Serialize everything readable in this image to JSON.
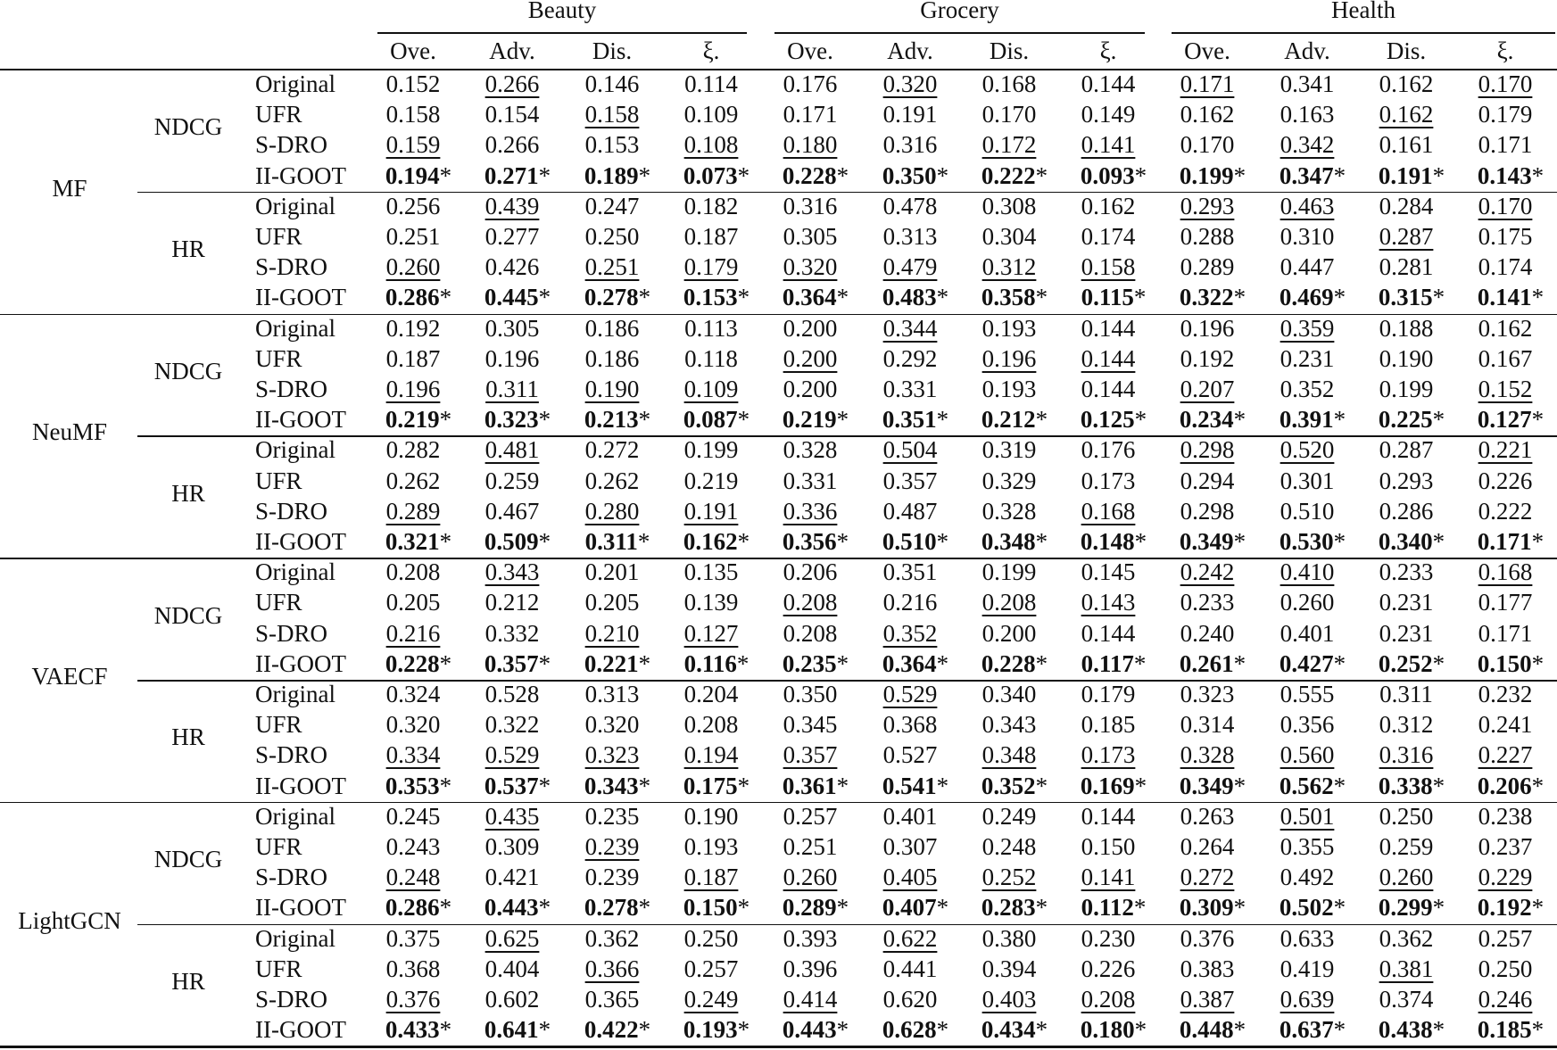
{
  "table": {
    "datasets": [
      "Beauty",
      "Grocery",
      "Health"
    ],
    "sub_columns": [
      "Ove.",
      "Adv.",
      "Dis.",
      "ξ."
    ],
    "significance_mark": "*",
    "bold_method": "II-GOOT",
    "models": [
      {
        "name": "MF",
        "metrics": [
          {
            "name": "NDCG",
            "rows": [
              {
                "method": "Original",
                "values": [
                  "0.152",
                  "0.266",
                  "0.146",
                  "0.114",
                  "0.176",
                  "0.320",
                  "0.168",
                  "0.144",
                  "0.171",
                  "0.341",
                  "0.162",
                  "0.170"
                ],
                "underlined": [
                  1,
                  5,
                  8,
                  11
                ]
              },
              {
                "method": "UFR",
                "values": [
                  "0.158",
                  "0.154",
                  "0.158",
                  "0.109",
                  "0.171",
                  "0.191",
                  "0.170",
                  "0.149",
                  "0.162",
                  "0.163",
                  "0.162",
                  "0.179"
                ],
                "underlined": [
                  2,
                  10
                ]
              },
              {
                "method": "S-DRO",
                "values": [
                  "0.159",
                  "0.266",
                  "0.153",
                  "0.108",
                  "0.180",
                  "0.316",
                  "0.172",
                  "0.141",
                  "0.170",
                  "0.342",
                  "0.161",
                  "0.171"
                ],
                "underlined": [
                  0,
                  3,
                  4,
                  6,
                  7,
                  9
                ]
              },
              {
                "method": "II-GOOT",
                "values": [
                  "0.194",
                  "0.271",
                  "0.189",
                  "0.073",
                  "0.228",
                  "0.350",
                  "0.222",
                  "0.093",
                  "0.199",
                  "0.347",
                  "0.191",
                  "0.143"
                ],
                "underlined": []
              }
            ]
          },
          {
            "name": "HR",
            "rows": [
              {
                "method": "Original",
                "values": [
                  "0.256",
                  "0.439",
                  "0.247",
                  "0.182",
                  "0.316",
                  "0.478",
                  "0.308",
                  "0.162",
                  "0.293",
                  "0.463",
                  "0.284",
                  "0.170"
                ],
                "underlined": [
                  1,
                  8,
                  9,
                  11
                ]
              },
              {
                "method": "UFR",
                "values": [
                  "0.251",
                  "0.277",
                  "0.250",
                  "0.187",
                  "0.305",
                  "0.313",
                  "0.304",
                  "0.174",
                  "0.288",
                  "0.310",
                  "0.287",
                  "0.175"
                ],
                "underlined": [
                  10
                ]
              },
              {
                "method": "S-DRO",
                "values": [
                  "0.260",
                  "0.426",
                  "0.251",
                  "0.179",
                  "0.320",
                  "0.479",
                  "0.312",
                  "0.158",
                  "0.289",
                  "0.447",
                  "0.281",
                  "0.174"
                ],
                "underlined": [
                  0,
                  2,
                  3,
                  4,
                  5,
                  6,
                  7
                ]
              },
              {
                "method": "II-GOOT",
                "values": [
                  "0.286",
                  "0.445",
                  "0.278",
                  "0.153",
                  "0.364",
                  "0.483",
                  "0.358",
                  "0.115",
                  "0.322",
                  "0.469",
                  "0.315",
                  "0.141"
                ],
                "underlined": []
              }
            ]
          }
        ]
      },
      {
        "name": "NeuMF",
        "metrics": [
          {
            "name": "NDCG",
            "rows": [
              {
                "method": "Original",
                "values": [
                  "0.192",
                  "0.305",
                  "0.186",
                  "0.113",
                  "0.200",
                  "0.344",
                  "0.193",
                  "0.144",
                  "0.196",
                  "0.359",
                  "0.188",
                  "0.162"
                ],
                "underlined": [
                  5,
                  9
                ]
              },
              {
                "method": "UFR",
                "values": [
                  "0.187",
                  "0.196",
                  "0.186",
                  "0.118",
                  "0.200",
                  "0.292",
                  "0.196",
                  "0.144",
                  "0.192",
                  "0.231",
                  "0.190",
                  "0.167"
                ],
                "underlined": [
                  4,
                  6,
                  7
                ]
              },
              {
                "method": "S-DRO",
                "values": [
                  "0.196",
                  "0.311",
                  "0.190",
                  "0.109",
                  "0.200",
                  "0.331",
                  "0.193",
                  "0.144",
                  "0.207",
                  "0.352",
                  "0.199",
                  "0.152"
                ],
                "underlined": [
                  0,
                  1,
                  2,
                  3,
                  8,
                  11
                ]
              },
              {
                "method": "II-GOOT",
                "values": [
                  "0.219",
                  "0.323",
                  "0.213",
                  "0.087",
                  "0.219",
                  "0.351",
                  "0.212",
                  "0.125",
                  "0.234",
                  "0.391",
                  "0.225",
                  "0.127"
                ],
                "underlined": []
              }
            ]
          },
          {
            "name": "HR",
            "rows": [
              {
                "method": "Original",
                "values": [
                  "0.282",
                  "0.481",
                  "0.272",
                  "0.199",
                  "0.328",
                  "0.504",
                  "0.319",
                  "0.176",
                  "0.298",
                  "0.520",
                  "0.287",
                  "0.221"
                ],
                "underlined": [
                  1,
                  5,
                  8,
                  9,
                  11
                ]
              },
              {
                "method": "UFR",
                "values": [
                  "0.262",
                  "0.259",
                  "0.262",
                  "0.219",
                  "0.331",
                  "0.357",
                  "0.329",
                  "0.173",
                  "0.294",
                  "0.301",
                  "0.293",
                  "0.226"
                ],
                "underlined": []
              },
              {
                "method": "S-DRO",
                "values": [
                  "0.289",
                  "0.467",
                  "0.280",
                  "0.191",
                  "0.336",
                  "0.487",
                  "0.328",
                  "0.168",
                  "0.298",
                  "0.510",
                  "0.286",
                  "0.222"
                ],
                "underlined": [
                  0,
                  2,
                  3,
                  4,
                  7
                ]
              },
              {
                "method": "II-GOOT",
                "values": [
                  "0.321",
                  "0.509",
                  "0.311",
                  "0.162",
                  "0.356",
                  "0.510",
                  "0.348",
                  "0.148",
                  "0.349",
                  "0.530",
                  "0.340",
                  "0.171"
                ],
                "underlined": []
              }
            ]
          }
        ]
      },
      {
        "name": "VAECF",
        "metrics": [
          {
            "name": "NDCG",
            "rows": [
              {
                "method": "Original",
                "values": [
                  "0.208",
                  "0.343",
                  "0.201",
                  "0.135",
                  "0.206",
                  "0.351",
                  "0.199",
                  "0.145",
                  "0.242",
                  "0.410",
                  "0.233",
                  "0.168"
                ],
                "underlined": [
                  1,
                  8,
                  9,
                  11
                ]
              },
              {
                "method": "UFR",
                "values": [
                  "0.205",
                  "0.212",
                  "0.205",
                  "0.139",
                  "0.208",
                  "0.216",
                  "0.208",
                  "0.143",
                  "0.233",
                  "0.260",
                  "0.231",
                  "0.177"
                ],
                "underlined": [
                  4,
                  6,
                  7
                ]
              },
              {
                "method": "S-DRO",
                "values": [
                  "0.216",
                  "0.332",
                  "0.210",
                  "0.127",
                  "0.208",
                  "0.352",
                  "0.200",
                  "0.144",
                  "0.240",
                  "0.401",
                  "0.231",
                  "0.171"
                ],
                "underlined": [
                  0,
                  2,
                  3,
                  5
                ]
              },
              {
                "method": "II-GOOT",
                "values": [
                  "0.228",
                  "0.357",
                  "0.221",
                  "0.116",
                  "0.235",
                  "0.364",
                  "0.228",
                  "0.117",
                  "0.261",
                  "0.427",
                  "0.252",
                  "0.150"
                ],
                "underlined": []
              }
            ]
          },
          {
            "name": "HR",
            "rows": [
              {
                "method": "Original",
                "values": [
                  "0.324",
                  "0.528",
                  "0.313",
                  "0.204",
                  "0.350",
                  "0.529",
                  "0.340",
                  "0.179",
                  "0.323",
                  "0.555",
                  "0.311",
                  "0.232"
                ],
                "underlined": [
                  5
                ]
              },
              {
                "method": "UFR",
                "values": [
                  "0.320",
                  "0.322",
                  "0.320",
                  "0.208",
                  "0.345",
                  "0.368",
                  "0.343",
                  "0.185",
                  "0.314",
                  "0.356",
                  "0.312",
                  "0.241"
                ],
                "underlined": []
              },
              {
                "method": "S-DRO",
                "values": [
                  "0.334",
                  "0.529",
                  "0.323",
                  "0.194",
                  "0.357",
                  "0.527",
                  "0.348",
                  "0.173",
                  "0.328",
                  "0.560",
                  "0.316",
                  "0.227"
                ],
                "underlined": [
                  0,
                  1,
                  2,
                  3,
                  4,
                  6,
                  7,
                  8,
                  9,
                  10,
                  11
                ]
              },
              {
                "method": "II-GOOT",
                "values": [
                  "0.353",
                  "0.537",
                  "0.343",
                  "0.175",
                  "0.361",
                  "0.541",
                  "0.352",
                  "0.169",
                  "0.349",
                  "0.562",
                  "0.338",
                  "0.206"
                ],
                "underlined": []
              }
            ]
          }
        ]
      },
      {
        "name": "LightGCN",
        "metrics": [
          {
            "name": "NDCG",
            "rows": [
              {
                "method": "Original",
                "values": [
                  "0.245",
                  "0.435",
                  "0.235",
                  "0.190",
                  "0.257",
                  "0.401",
                  "0.249",
                  "0.144",
                  "0.263",
                  "0.501",
                  "0.250",
                  "0.238"
                ],
                "underlined": [
                  1,
                  9
                ]
              },
              {
                "method": "UFR",
                "values": [
                  "0.243",
                  "0.309",
                  "0.239",
                  "0.193",
                  "0.251",
                  "0.307",
                  "0.248",
                  "0.150",
                  "0.264",
                  "0.355",
                  "0.259",
                  "0.237"
                ],
                "underlined": [
                  2
                ]
              },
              {
                "method": "S-DRO",
                "values": [
                  "0.248",
                  "0.421",
                  "0.239",
                  "0.187",
                  "0.260",
                  "0.405",
                  "0.252",
                  "0.141",
                  "0.272",
                  "0.492",
                  "0.260",
                  "0.229"
                ],
                "underlined": [
                  0,
                  3,
                  4,
                  5,
                  6,
                  7,
                  8,
                  10,
                  11
                ]
              },
              {
                "method": "II-GOOT",
                "values": [
                  "0.286",
                  "0.443",
                  "0.278",
                  "0.150",
                  "0.289",
                  "0.407",
                  "0.283",
                  "0.112",
                  "0.309",
                  "0.502",
                  "0.299",
                  "0.192"
                ],
                "underlined": []
              }
            ]
          },
          {
            "name": "HR",
            "rows": [
              {
                "method": "Original",
                "values": [
                  "0.375",
                  "0.625",
                  "0.362",
                  "0.250",
                  "0.393",
                  "0.622",
                  "0.380",
                  "0.230",
                  "0.376",
                  "0.633",
                  "0.362",
                  "0.257"
                ],
                "underlined": [
                  1,
                  5
                ]
              },
              {
                "method": "UFR",
                "values": [
                  "0.368",
                  "0.404",
                  "0.366",
                  "0.257",
                  "0.396",
                  "0.441",
                  "0.394",
                  "0.226",
                  "0.383",
                  "0.419",
                  "0.381",
                  "0.250"
                ],
                "underlined": [
                  2,
                  10
                ]
              },
              {
                "method": "S-DRO",
                "values": [
                  "0.376",
                  "0.602",
                  "0.365",
                  "0.249",
                  "0.414",
                  "0.620",
                  "0.403",
                  "0.208",
                  "0.387",
                  "0.639",
                  "0.374",
                  "0.246"
                ],
                "underlined": [
                  0,
                  3,
                  4,
                  6,
                  7,
                  8,
                  9,
                  11
                ]
              },
              {
                "method": "II-GOOT",
                "values": [
                  "0.433",
                  "0.641",
                  "0.422",
                  "0.193",
                  "0.443",
                  "0.628",
                  "0.434",
                  "0.180",
                  "0.448",
                  "0.637",
                  "0.438",
                  "0.185"
                ],
                "underlined": []
              }
            ]
          }
        ]
      }
    ]
  }
}
